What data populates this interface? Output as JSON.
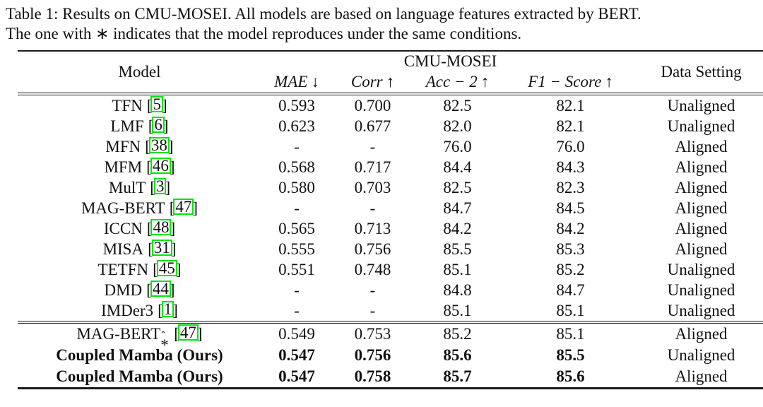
{
  "caption": {
    "line1": "Table 1: Results on CMU-MOSEI. All models are based on language features extracted by BERT.",
    "line2": "The one with ∗ indicates that the model reproduces under the same conditions."
  },
  "punct": {
    "open": "[",
    "close": "]"
  },
  "colors": {
    "citation_box_green": "#00e40c",
    "text": "#111111"
  },
  "table": {
    "headers": {
      "model": "Model",
      "group": "CMU-MOSEI",
      "data_setting": "Data Setting",
      "metrics": [
        {
          "label": "MAE",
          "arrow": "↓"
        },
        {
          "label": "Corr",
          "arrow": "↑"
        },
        {
          "label": "Acc − 2",
          "arrow": "↑"
        },
        {
          "label": "F1 − Score",
          "arrow": "↑"
        }
      ]
    },
    "rows": [
      {
        "model": "TFN",
        "cite": "5",
        "mae": "0.593",
        "corr": "0.700",
        "acc2": "82.5",
        "f1": "82.1",
        "setting": "Unaligned"
      },
      {
        "model": "LMF",
        "cite": "6",
        "mae": "0.623",
        "corr": "0.677",
        "acc2": "82.0",
        "f1": "82.1",
        "setting": "Unaligned"
      },
      {
        "model": "MFN",
        "cite": "38",
        "mae": "-",
        "corr": "-",
        "acc2": "76.0",
        "f1": "76.0",
        "setting": "Aligned"
      },
      {
        "model": "MFM",
        "cite": "46",
        "mae": "0.568",
        "corr": "0.717",
        "acc2": "84.4",
        "f1": "84.3",
        "setting": "Aligned"
      },
      {
        "model": "MulT",
        "cite": "3",
        "mae": "0.580",
        "corr": "0.703",
        "acc2": "82.5",
        "f1": "82.3",
        "setting": "Aligned"
      },
      {
        "model": "MAG-BERT",
        "cite": "47",
        "mae": "-",
        "corr": "-",
        "acc2": "84.7",
        "f1": "84.5",
        "setting": "Aligned"
      },
      {
        "model": "ICCN",
        "cite": "48",
        "mae": "0.565",
        "corr": "0.713",
        "acc2": "84.2",
        "f1": "84.2",
        "setting": "Aligned"
      },
      {
        "model": "MISA",
        "cite": "31",
        "mae": "0.555",
        "corr": "0.756",
        "acc2": "85.5",
        "f1": "85.3",
        "setting": "Aligned"
      },
      {
        "model": "TETFN",
        "cite": "45",
        "mae": "0.551",
        "corr": "0.748",
        "acc2": "85.1",
        "f1": "85.2",
        "setting": "Unaligned"
      },
      {
        "model": "DMD",
        "cite": "44",
        "mae": "-",
        "corr": "-",
        "acc2": "84.8",
        "f1": "84.7",
        "setting": "Unaligned"
      },
      {
        "model": "IMDer3",
        "cite": "1",
        "mae": "-",
        "corr": "-",
        "acc2": "85.1",
        "f1": "85.1",
        "setting": "Unaligned"
      },
      {
        "model": "MAG-BERT",
        "star": "*",
        "hat": "ˆ",
        "cite": "47",
        "mae": "0.549",
        "corr": "0.753",
        "acc2": "85.2",
        "f1": "85.1",
        "setting": "Aligned"
      },
      {
        "model": "Coupled Mamba (Ours)",
        "mae": "0.547",
        "corr": "0.756",
        "acc2": "85.6",
        "f1": "85.5",
        "setting": "Unaligned"
      },
      {
        "model": "Coupled Mamba (Ours)",
        "mae": "0.547",
        "corr": "0.758",
        "acc2": "85.7",
        "f1": "85.6",
        "setting": "Aligned"
      }
    ]
  }
}
